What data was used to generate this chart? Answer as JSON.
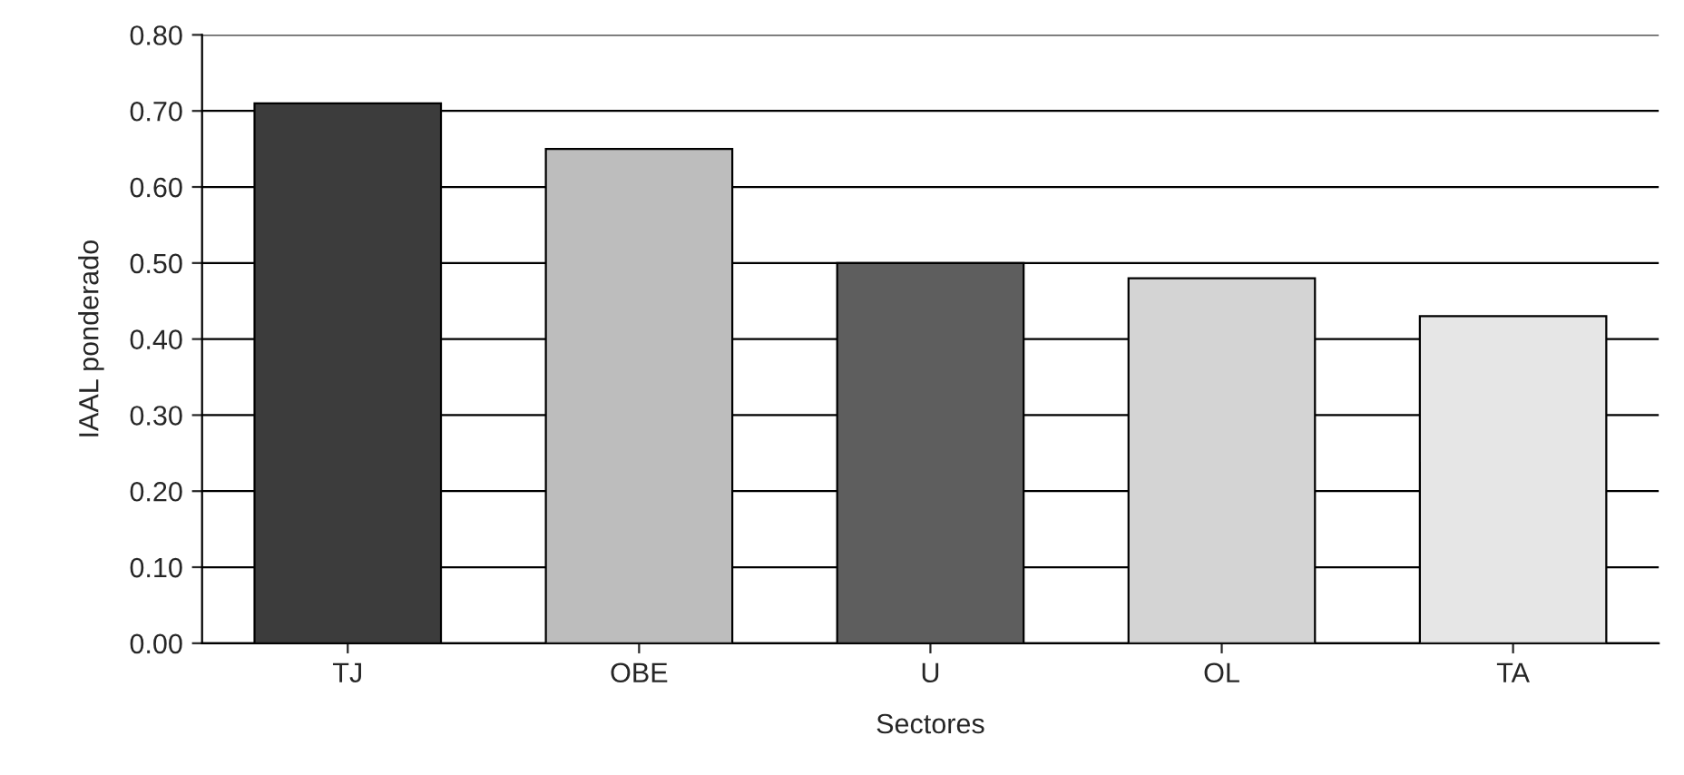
{
  "chart_data": {
    "type": "bar",
    "xlabel": "Sectores",
    "ylabel": "IAAL ponderado",
    "categories": [
      "TJ",
      "OBE",
      "U",
      "OL",
      "TA"
    ],
    "values": [
      0.71,
      0.65,
      0.5,
      0.48,
      0.43
    ],
    "colors": [
      "#3c3c3c",
      "#bdbdbd",
      "#5e5e5e",
      "#d4d4d4",
      "#e6e6e6"
    ],
    "ylim": [
      0,
      0.8
    ],
    "yticks": [
      {
        "value": 0,
        "label": "0.00"
      },
      {
        "value": 0.1,
        "label": "0.10"
      },
      {
        "value": 0.2,
        "label": "0.20"
      },
      {
        "value": 0.3,
        "label": "0.30"
      },
      {
        "value": 0.4,
        "label": "0.40"
      },
      {
        "value": 0.5,
        "label": "0.50"
      },
      {
        "value": 0.6,
        "label": "0.60"
      },
      {
        "value": 0.7,
        "label": "0.70"
      },
      {
        "value": 0.8,
        "label": "0.80"
      }
    ],
    "grid": "y"
  }
}
